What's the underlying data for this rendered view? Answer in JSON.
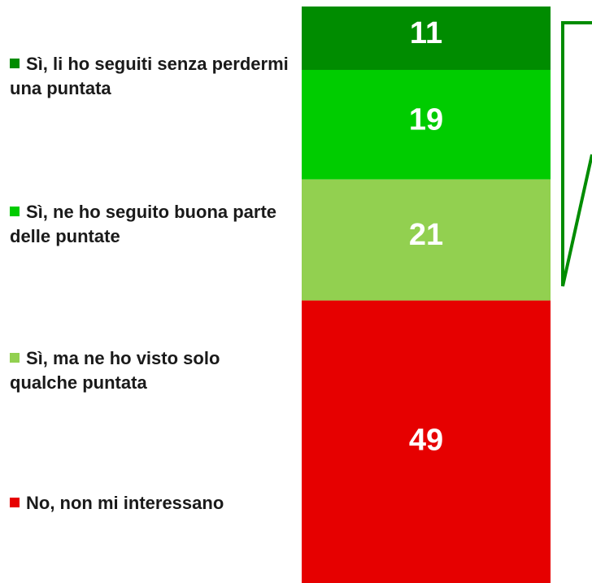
{
  "chart_data": {
    "type": "bar",
    "stacked": true,
    "series": [
      {
        "name": "Sì, li ho seguiti senza perdermi una puntata",
        "color": "#008c00",
        "values": [
          11
        ]
      },
      {
        "name": "Sì, ne ho seguito buona parte delle puntate",
        "color": "#00cc00",
        "values": [
          19
        ]
      },
      {
        "name": "Sì, ma ne ho visto solo qualche puntata",
        "color": "#92d050",
        "values": [
          21
        ]
      },
      {
        "name": "No, non mi interessano",
        "color": "#e60000",
        "values": [
          49
        ]
      }
    ],
    "ylim": [
      0,
      100
    ]
  }
}
